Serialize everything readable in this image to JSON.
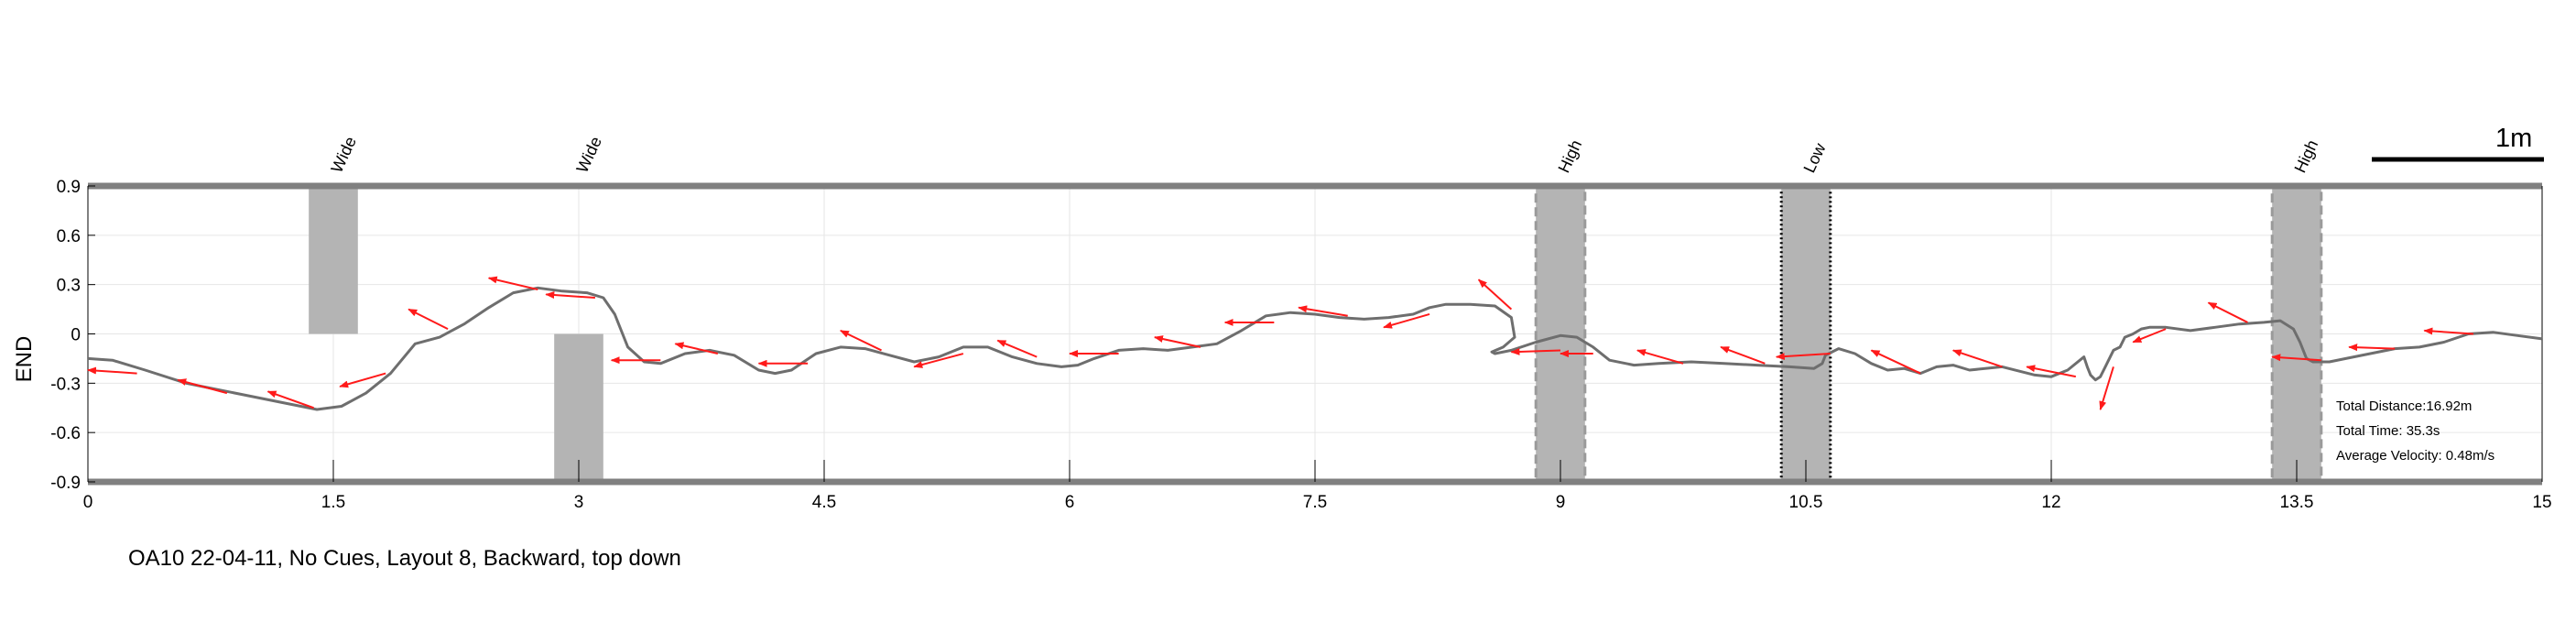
{
  "chart_data": {
    "type": "line",
    "title": "OA10 22-04-11, No Cues, Layout 8, Backward, top down",
    "ylabel": "END",
    "xlabel": "",
    "xlim": [
      0,
      15
    ],
    "ylim": [
      -0.9,
      0.9
    ],
    "x_ticks": [
      0,
      1.5,
      3,
      4.5,
      6,
      7.5,
      9,
      10.5,
      12,
      13.5,
      15
    ],
    "x_tick_labels": [
      "0",
      "1.5",
      "3",
      "4.5",
      "6",
      "7.5",
      "9",
      "10.5",
      "12",
      "13.5",
      "15"
    ],
    "y_ticks": [
      -0.9,
      -0.6,
      -0.3,
      0,
      0.3,
      0.6,
      0.9
    ],
    "y_tick_labels": [
      "-0.9",
      "-0.6",
      "-0.3",
      "0",
      "0.3",
      "0.6",
      "0.9"
    ],
    "grid": true,
    "colors": {
      "path": "#6e6e6e",
      "arrow": "#ff1a1a",
      "obstacle": "#b4b4b4",
      "wall": "#808080",
      "grid": "#e6e6e6"
    },
    "scale_bar": {
      "label": "1m",
      "length_m": 1
    },
    "obstacles": [
      {
        "label": "Wide",
        "x": [
          1.35,
          1.65
        ],
        "y": [
          0,
          0.9
        ],
        "style": "solid"
      },
      {
        "label": "Wide",
        "x": [
          2.85,
          3.15
        ],
        "y": [
          -0.9,
          0
        ],
        "style": "solid"
      },
      {
        "label": "High",
        "x": [
          8.85,
          9.15
        ],
        "y": [
          -0.9,
          0.9
        ],
        "style": "dashed"
      },
      {
        "label": "Low",
        "x": [
          10.35,
          10.65
        ],
        "y": [
          -0.9,
          0.9
        ],
        "style": "dotted"
      },
      {
        "label": "High",
        "x": [
          13.35,
          13.65
        ],
        "y": [
          -0.9,
          0.9
        ],
        "style": "dashed"
      }
    ],
    "series": [
      {
        "name": "walking path",
        "x": [
          0,
          0.15,
          0.35,
          0.6,
          0.9,
          1.2,
          1.4,
          1.55,
          1.7,
          1.85,
          2.0,
          2.15,
          2.3,
          2.45,
          2.6,
          2.75,
          2.9,
          3.05,
          3.15,
          3.22,
          3.3,
          3.4,
          3.5,
          3.65,
          3.8,
          3.95,
          4.1,
          4.2,
          4.3,
          4.45,
          4.6,
          4.75,
          4.9,
          5.05,
          5.2,
          5.35,
          5.5,
          5.65,
          5.8,
          5.95,
          6.05,
          6.15,
          6.3,
          6.45,
          6.6,
          6.75,
          6.9,
          7.05,
          7.2,
          7.35,
          7.5,
          7.65,
          7.8,
          7.95,
          8.1,
          8.2,
          8.3,
          8.45,
          8.6,
          8.7,
          8.72,
          8.65,
          8.58,
          8.6,
          8.7,
          8.85,
          9.0,
          9.1,
          9.2,
          9.3,
          9.45,
          9.6,
          9.8,
          10.0,
          10.2,
          10.4,
          10.55,
          10.6,
          10.62,
          10.7,
          10.8,
          10.9,
          11.0,
          11.1,
          11.2,
          11.3,
          11.4,
          11.5,
          11.7,
          11.9,
          12.0,
          12.1,
          12.2,
          12.22,
          12.24,
          12.27,
          12.3,
          12.33,
          12.38,
          12.42,
          12.45,
          12.5,
          12.55,
          12.6,
          12.7,
          12.85,
          13.0,
          13.15,
          13.3,
          13.4,
          13.48,
          13.52,
          13.56,
          13.6,
          13.7,
          13.8,
          13.95,
          14.1,
          14.25,
          14.4,
          14.55,
          14.7,
          14.85,
          15.0
        ],
        "y": [
          -0.15,
          -0.16,
          -0.22,
          -0.3,
          -0.36,
          -0.42,
          -0.46,
          -0.44,
          -0.36,
          -0.24,
          -0.06,
          -0.02,
          0.06,
          0.16,
          0.25,
          0.28,
          0.26,
          0.25,
          0.22,
          0.12,
          -0.08,
          -0.17,
          -0.18,
          -0.12,
          -0.1,
          -0.13,
          -0.22,
          -0.24,
          -0.22,
          -0.12,
          -0.08,
          -0.09,
          -0.13,
          -0.17,
          -0.14,
          -0.08,
          -0.08,
          -0.14,
          -0.18,
          -0.2,
          -0.19,
          -0.15,
          -0.1,
          -0.09,
          -0.1,
          -0.08,
          -0.06,
          0.02,
          0.11,
          0.13,
          0.12,
          0.1,
          0.09,
          0.1,
          0.12,
          0.16,
          0.18,
          0.18,
          0.17,
          0.1,
          -0.02,
          -0.08,
          -0.11,
          -0.12,
          -0.1,
          -0.05,
          -0.01,
          -0.02,
          -0.08,
          -0.16,
          -0.19,
          -0.18,
          -0.17,
          -0.18,
          -0.19,
          -0.2,
          -0.21,
          -0.18,
          -0.13,
          -0.09,
          -0.12,
          -0.18,
          -0.22,
          -0.21,
          -0.24,
          -0.2,
          -0.19,
          -0.22,
          -0.2,
          -0.25,
          -0.26,
          -0.22,
          -0.14,
          -0.2,
          -0.25,
          -0.28,
          -0.26,
          -0.2,
          -0.1,
          -0.08,
          -0.02,
          0.0,
          0.03,
          0.04,
          0.04,
          0.02,
          0.04,
          0.06,
          0.07,
          0.08,
          0.03,
          -0.05,
          -0.15,
          -0.17,
          -0.17,
          -0.15,
          -0.12,
          -0.09,
          -0.08,
          -0.05,
          0.0,
          0.01,
          -0.01,
          -0.03
        ]
      }
    ],
    "arrows": [
      {
        "x": 0.3,
        "y": -0.24,
        "dx": -0.3,
        "dy": 0.02
      },
      {
        "x": 0.85,
        "y": -0.36,
        "dx": -0.3,
        "dy": 0.08
      },
      {
        "x": 1.38,
        "y": -0.45,
        "dx": -0.28,
        "dy": 0.1
      },
      {
        "x": 1.82,
        "y": -0.24,
        "dx": -0.28,
        "dy": -0.08
      },
      {
        "x": 2.2,
        "y": 0.03,
        "dx": -0.24,
        "dy": 0.12
      },
      {
        "x": 2.75,
        "y": 0.27,
        "dx": -0.3,
        "dy": 0.07
      },
      {
        "x": 3.1,
        "y": 0.22,
        "dx": -0.3,
        "dy": 0.02
      },
      {
        "x": 3.5,
        "y": -0.16,
        "dx": -0.3,
        "dy": 0.0
      },
      {
        "x": 3.85,
        "y": -0.12,
        "dx": -0.26,
        "dy": 0.06
      },
      {
        "x": 4.4,
        "y": -0.18,
        "dx": -0.3,
        "dy": 0.0
      },
      {
        "x": 4.85,
        "y": -0.1,
        "dx": -0.25,
        "dy": 0.12
      },
      {
        "x": 5.35,
        "y": -0.12,
        "dx": -0.3,
        "dy": -0.08
      },
      {
        "x": 5.8,
        "y": -0.14,
        "dx": -0.24,
        "dy": 0.1
      },
      {
        "x": 6.3,
        "y": -0.12,
        "dx": -0.3,
        "dy": 0.0
      },
      {
        "x": 6.8,
        "y": -0.08,
        "dx": -0.28,
        "dy": 0.06
      },
      {
        "x": 7.25,
        "y": 0.07,
        "dx": -0.3,
        "dy": 0.0
      },
      {
        "x": 7.7,
        "y": 0.11,
        "dx": -0.3,
        "dy": 0.05
      },
      {
        "x": 8.2,
        "y": 0.12,
        "dx": -0.28,
        "dy": -0.08
      },
      {
        "x": 8.7,
        "y": 0.15,
        "dx": -0.2,
        "dy": 0.18
      },
      {
        "x": 9.0,
        "y": -0.1,
        "dx": -0.3,
        "dy": -0.01
      },
      {
        "x": 9.2,
        "y": -0.12,
        "dx": -0.2,
        "dy": 0.0
      },
      {
        "x": 9.75,
        "y": -0.18,
        "dx": -0.28,
        "dy": 0.08
      },
      {
        "x": 10.25,
        "y": -0.18,
        "dx": -0.27,
        "dy": 0.1
      },
      {
        "x": 10.65,
        "y": -0.12,
        "dx": -0.33,
        "dy": -0.02
      },
      {
        "x": 11.2,
        "y": -0.24,
        "dx": -0.3,
        "dy": 0.14
      },
      {
        "x": 11.7,
        "y": -0.2,
        "dx": -0.3,
        "dy": 0.1
      },
      {
        "x": 12.15,
        "y": -0.26,
        "dx": -0.3,
        "dy": 0.06
      },
      {
        "x": 12.38,
        "y": -0.2,
        "dx": -0.08,
        "dy": -0.26
      },
      {
        "x": 12.7,
        "y": 0.03,
        "dx": -0.2,
        "dy": -0.08
      },
      {
        "x": 13.2,
        "y": 0.07,
        "dx": -0.24,
        "dy": 0.12
      },
      {
        "x": 13.65,
        "y": -0.16,
        "dx": -0.3,
        "dy": 0.02
      },
      {
        "x": 14.1,
        "y": -0.09,
        "dx": -0.28,
        "dy": 0.01
      },
      {
        "x": 14.58,
        "y": 0.0,
        "dx": -0.3,
        "dy": 0.02
      }
    ],
    "stats": {
      "distance": "Total Distance:16.92m",
      "time": "Total Time: 35.3s",
      "velocity": "Average Velocity: 0.48m/s"
    }
  }
}
